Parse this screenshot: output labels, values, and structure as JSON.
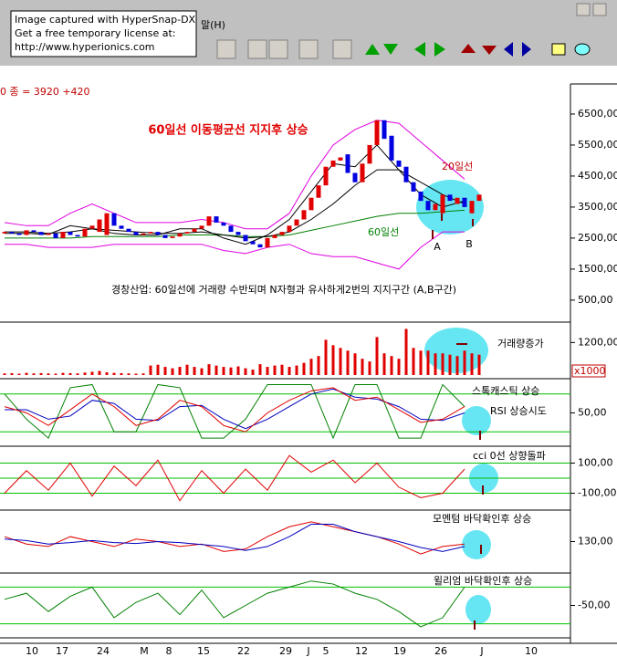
{
  "capture_notice": [
    "Image captured with HyperSnap-DX",
    "Get a free temporary license at:",
    "http://www.hyperionics.com"
  ],
  "menu": "말(H)",
  "status": "0 종 = 3920 +420",
  "price_panel": {
    "title": "60일선 이동평균선 지지후 상승",
    "labels": {
      "ma20": "20일선",
      "ma60": "60일선",
      "a": "A",
      "b": "B"
    },
    "note": "경창산업: 60일선에 거래량 수반되며 N자형과 유사하게2번의 지지구간 (A,B구간)",
    "ylim": [
      -180,
      7440
    ],
    "yticks": [
      {
        "value": 6500,
        "label": "6500,00"
      },
      {
        "value": 5500,
        "label": "5500,00"
      },
      {
        "value": 4500,
        "label": "4500,00"
      },
      {
        "value": 3500,
        "label": "3500,00"
      },
      {
        "value": 2500,
        "label": "2500,00"
      },
      {
        "value": 1500,
        "label": "1500,00"
      },
      {
        "value": 500,
        "label": "500,00"
      }
    ],
    "up_color": "#e00000",
    "down_color": "#0000e0",
    "open": [
      2650,
      2700,
      2650,
      2600,
      2750,
      2700,
      2600,
      2650,
      2500,
      2700,
      2600,
      2550,
      2800,
      2700,
      2600,
      3300,
      2900,
      2800,
      2700,
      2600,
      2650,
      2700,
      2600,
      2500,
      2550,
      2650,
      2700,
      2800,
      2900,
      3200,
      3000,
      2900,
      2700,
      2600,
      2400,
      2300,
      2200,
      2500,
      2600,
      2700,
      2900,
      3100,
      3400,
      3800,
      4200,
      4800,
      5000,
      5200,
      4600,
      4300,
      4900,
      5500,
      6300,
      5800,
      5000,
      4800,
      4300,
      4000,
      3700,
      3400,
      3300,
      3900,
      3600,
      3800,
      3300,
      3700
    ],
    "close": [
      2700,
      2650,
      2600,
      2750,
      2700,
      2600,
      2650,
      2500,
      2700,
      2600,
      2550,
      2800,
      2900,
      3100,
      3300,
      2900,
      2800,
      2700,
      2600,
      2650,
      2700,
      2600,
      2500,
      2550,
      2650,
      2700,
      2800,
      2900,
      3200,
      3000,
      2900,
      2700,
      2600,
      2400,
      2300,
      2200,
      2500,
      2600,
      2700,
      2900,
      3100,
      3400,
      3800,
      4200,
      4800,
      5000,
      5100,
      4600,
      4300,
      4900,
      5500,
      6300,
      5700,
      5000,
      4800,
      4300,
      4000,
      3700,
      3400,
      3600,
      3900,
      3700,
      3800,
      3500,
      3700,
      3900
    ],
    "lines": [
      {
        "key": "upper",
        "color": "#e000e0",
        "values": [
          3000,
          2900,
          2900,
          3300,
          3600,
          3300,
          3000,
          3000,
          3000,
          3100,
          3000,
          2800,
          2800,
          3300,
          4500,
          5500,
          6000,
          6300,
          6200,
          5600,
          5000,
          4400
        ]
      },
      {
        "key": "lower",
        "color": "#e000e0",
        "values": [
          2300,
          2300,
          2200,
          2200,
          2200,
          2300,
          2300,
          2300,
          2300,
          2300,
          2100,
          2000,
          2200,
          2300,
          2000,
          1900,
          1900,
          1700,
          1500,
          2200,
          2700,
          2700
        ]
      },
      {
        "key": "ma60",
        "color": "#008000",
        "values": [
          2500,
          2500,
          2500,
          2500,
          2550,
          2550,
          2550,
          2550,
          2600,
          2600,
          2600,
          2550,
          2550,
          2600,
          2750,
          2900,
          3050,
          3200,
          3300,
          3300,
          3350,
          3400
        ]
      },
      {
        "key": "ma20",
        "color": "#000000",
        "values": [
          2700,
          2700,
          2650,
          2700,
          2800,
          2750,
          2700,
          2650,
          2650,
          2700,
          2600,
          2500,
          2550,
          2700,
          3100,
          3600,
          4200,
          4700,
          4700,
          4300,
          3900,
          3600
        ]
      },
      {
        "key": "ma5",
        "color": "#000000",
        "values": [
          2650,
          2650,
          2620,
          2900,
          2800,
          2650,
          2600,
          2600,
          2800,
          2800,
          2500,
          2300,
          2600,
          3100,
          4000,
          4900,
          4800,
          5500,
          4700,
          3900,
          3500,
          3700
        ]
      }
    ]
  },
  "volume_panel": {
    "label": "거래량증가",
    "unit": "x1000",
    "ylim": [
      0,
      1817
    ],
    "yticks": [
      {
        "value": 1200,
        "label": "1200,00"
      }
    ],
    "color": "#e00000",
    "values": [
      60,
      70,
      50,
      80,
      60,
      70,
      60,
      50,
      80,
      70,
      60,
      90,
      120,
      150,
      100,
      80,
      70,
      60,
      50,
      60,
      350,
      380,
      300,
      250,
      300,
      380,
      300,
      250,
      400,
      350,
      300,
      280,
      320,
      250,
      200,
      400,
      300,
      350,
      380,
      300,
      350,
      450,
      600,
      700,
      1300,
      1100,
      1000,
      900,
      800,
      600,
      500,
      1400,
      800,
      700,
      600,
      1700,
      1000,
      900,
      900,
      800,
      800,
      750,
      700,
      900,
      800,
      750
    ]
  },
  "oscillator_panels": [
    {
      "labels": [
        "스톡캐스틱 상승",
        "RSI 상승시도"
      ],
      "ylim": [
        0,
        100
      ],
      "yticks": [
        {
          "value": 50,
          "label": "50,00"
        }
      ],
      "guides": [
        20,
        80
      ],
      "series": [
        {
          "color": "#008000",
          "values": [
            80,
            40,
            10,
            90,
            95,
            20,
            20,
            95,
            90,
            10,
            10,
            40,
            95,
            95,
            95,
            10,
            95,
            95,
            10,
            10,
            95,
            60
          ]
        },
        {
          "color": "#0000c0",
          "values": [
            55,
            55,
            40,
            45,
            70,
            65,
            40,
            38,
            60,
            62,
            40,
            25,
            40,
            60,
            80,
            88,
            75,
            72,
            60,
            40,
            38,
            50
          ]
        },
        {
          "color": "#e00000",
          "values": [
            60,
            50,
            30,
            55,
            80,
            60,
            30,
            40,
            70,
            60,
            30,
            20,
            50,
            70,
            85,
            90,
            70,
            75,
            55,
            35,
            40,
            60
          ]
        }
      ]
    },
    {
      "labels": [
        "cci 0선 상향돌파"
      ],
      "ylim": [
        -200,
        200
      ],
      "yticks": [
        {
          "value": 100,
          "label": "100,00"
        },
        {
          "value": -100,
          "label": "-100,00"
        }
      ],
      "guides": [
        100,
        0,
        -100
      ],
      "series": [
        {
          "color": "#e00000",
          "values": [
            -100,
            50,
            -80,
            100,
            -120,
            80,
            -50,
            120,
            -150,
            50,
            -100,
            60,
            -80,
            150,
            40,
            120,
            -30,
            100,
            -60,
            -130,
            -100,
            60
          ]
        }
      ]
    },
    {
      "labels": [
        "모멘텀 바닥확인후 상승"
      ],
      "ylim": [
        70,
        190
      ],
      "yticks": [
        {
          "value": 130,
          "label": "130,00"
        }
      ],
      "guides": [],
      "series": [
        {
          "color": "#e00000",
          "values": [
            140,
            125,
            120,
            140,
            130,
            120,
            135,
            130,
            120,
            125,
            110,
            115,
            140,
            160,
            170,
            160,
            150,
            140,
            125,
            105,
            120,
            125
          ]
        },
        {
          "color": "#0000c0",
          "values": [
            135,
            132,
            125,
            128,
            132,
            128,
            126,
            130,
            128,
            124,
            120,
            112,
            120,
            140,
            165,
            165,
            150,
            140,
            130,
            118,
            110,
            120
          ]
        }
      ]
    },
    {
      "labels": [
        "윌리엄 바닥확인후 상승"
      ],
      "ylim": [
        -100,
        0
      ],
      "yticks": [
        {
          "value": -50,
          "label": "-50,00"
        }
      ],
      "guides": [
        -20,
        -80
      ],
      "series": [
        {
          "color": "#008000",
          "values": [
            -40,
            -30,
            -60,
            -35,
            -20,
            -70,
            -45,
            -30,
            -65,
            -25,
            -70,
            -50,
            -30,
            -20,
            -10,
            -15,
            -30,
            -40,
            -60,
            -85,
            -70,
            -20
          ]
        }
      ]
    }
  ],
  "x_labels": [
    "10",
    "17",
    "24",
    "M",
    "8",
    "15",
    "22",
    "29",
    "J",
    "5",
    "12",
    "19",
    "26",
    "J",
    "10"
  ]
}
